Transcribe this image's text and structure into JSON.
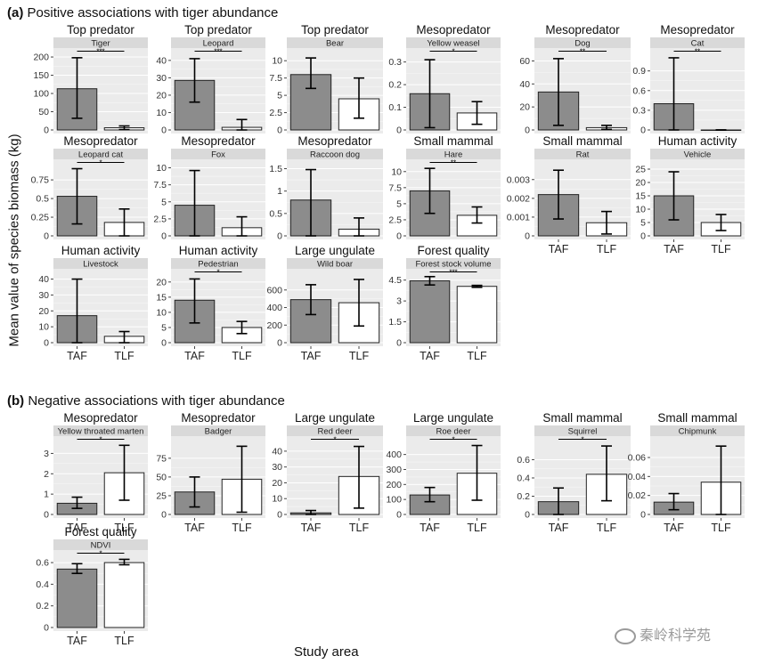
{
  "headings": {
    "a_letter": "(a)",
    "a_text": "Positive associations with tiger abundance",
    "b_letter": "(b)",
    "b_text": "Negative associations with tiger abundance"
  },
  "ylabel": "Mean value of species biomass (kg)",
  "xlabel": "Study area",
  "watermark": "秦岭科学苑",
  "chart_data": [
    {
      "type": "bar",
      "section": "a",
      "group": "Top predator",
      "title": "Tiger",
      "categories": [
        "TAF",
        "TLF"
      ],
      "values": [
        113,
        6
      ],
      "error_low": [
        32,
        1
      ],
      "error_high": [
        198,
        11
      ],
      "ylim": [
        0,
        205
      ],
      "yticks": [
        "0",
        "50",
        "100",
        "150",
        "200"
      ],
      "yvals": [
        0,
        50,
        100,
        150,
        200
      ],
      "significance": "***",
      "show_xticks": false
    },
    {
      "type": "bar",
      "section": "a",
      "group": "Top predator",
      "title": "Leopard",
      "categories": [
        "TAF",
        "TLF"
      ],
      "values": [
        28.5,
        1.5
      ],
      "error_low": [
        16,
        0
      ],
      "error_high": [
        41,
        6
      ],
      "ylim": [
        0,
        43
      ],
      "yticks": [
        "0",
        "10",
        "20",
        "30",
        "40"
      ],
      "yvals": [
        0,
        10,
        20,
        30,
        40
      ],
      "significance": "***",
      "show_xticks": false
    },
    {
      "type": "bar",
      "section": "a",
      "group": "Top predator",
      "title": "Bear",
      "categories": [
        "TAF",
        "TLF"
      ],
      "values": [
        8,
        4.5
      ],
      "error_low": [
        6,
        1.7
      ],
      "error_high": [
        10.4,
        7.5
      ],
      "ylim": [
        0,
        10.8
      ],
      "yticks": [
        "0",
        "2.5",
        "5",
        "7.5",
        "10"
      ],
      "yvals": [
        0,
        2.5,
        5,
        7.5,
        10
      ],
      "significance": "",
      "show_xticks": false
    },
    {
      "type": "bar",
      "section": "a",
      "group": "Mesopredator",
      "title": "Yellow weasel",
      "categories": [
        "TAF",
        "TLF"
      ],
      "values": [
        0.16,
        0.075
      ],
      "error_low": [
        0.01,
        0.025
      ],
      "error_high": [
        0.31,
        0.125
      ],
      "ylim": [
        0,
        0.33
      ],
      "yticks": [
        "0",
        "0.1",
        "0.2",
        "0.3"
      ],
      "yvals": [
        0,
        0.1,
        0.2,
        0.3
      ],
      "significance": "*",
      "show_xticks": false
    },
    {
      "type": "bar",
      "section": "a",
      "group": "Mesopredator",
      "title": "Dog",
      "categories": [
        "TAF",
        "TLF"
      ],
      "values": [
        33,
        2
      ],
      "error_low": [
        4,
        0.5
      ],
      "error_high": [
        62,
        4
      ],
      "ylim": [
        0,
        65
      ],
      "yticks": [
        "0",
        "20",
        "40",
        "60"
      ],
      "yvals": [
        0,
        20,
        40,
        60
      ],
      "significance": "**",
      "show_xticks": false
    },
    {
      "type": "bar",
      "section": "a",
      "group": "Mesopredator",
      "title": "Cat",
      "categories": [
        "TAF",
        "TLF"
      ],
      "values": [
        0.4,
        0
      ],
      "error_low": [
        0,
        0
      ],
      "error_high": [
        1.1,
        0
      ],
      "ylim": [
        0,
        1.14
      ],
      "yticks": [
        "0",
        "0.3",
        "0.6",
        "0.9"
      ],
      "yvals": [
        0,
        0.3,
        0.6,
        0.9
      ],
      "significance": "**",
      "show_xticks": false
    },
    {
      "type": "bar",
      "section": "a",
      "group": "Mesopredator",
      "title": "Leopard cat",
      "categories": [
        "TAF",
        "TLF"
      ],
      "values": [
        0.53,
        0.18
      ],
      "error_low": [
        0.16,
        0
      ],
      "error_high": [
        0.9,
        0.36
      ],
      "ylim": [
        0,
        0.93
      ],
      "yticks": [
        "0",
        "0.25",
        "0.5",
        "0.75"
      ],
      "yvals": [
        0,
        0.25,
        0.5,
        0.75
      ],
      "significance": "*",
      "show_xticks": false
    },
    {
      "type": "bar",
      "section": "a",
      "group": "Mesopredator",
      "title": "Fox",
      "categories": [
        "TAF",
        "TLF"
      ],
      "values": [
        4.5,
        1.2
      ],
      "error_low": [
        0,
        0
      ],
      "error_high": [
        9.6,
        2.8
      ],
      "ylim": [
        0,
        10.2
      ],
      "yticks": [
        "0",
        "2.5",
        "5",
        "7.5",
        "10"
      ],
      "yvals": [
        0,
        2.5,
        5,
        7.5,
        10
      ],
      "significance": "",
      "show_xticks": false
    },
    {
      "type": "bar",
      "section": "a",
      "group": "Mesopredator",
      "title": "Raccoon dog",
      "categories": [
        "TAF",
        "TLF"
      ],
      "values": [
        0.8,
        0.15
      ],
      "error_low": [
        0,
        0
      ],
      "error_high": [
        1.48,
        0.4
      ],
      "ylim": [
        0,
        1.55
      ],
      "yticks": [
        "0",
        "0.5",
        "1",
        "1.5"
      ],
      "yvals": [
        0,
        0.5,
        1,
        1.5
      ],
      "significance": "",
      "show_xticks": false
    },
    {
      "type": "bar",
      "section": "a",
      "group": "Small mammal",
      "title": "Hare",
      "categories": [
        "TAF",
        "TLF"
      ],
      "values": [
        7,
        3.2
      ],
      "error_low": [
        3.5,
        2
      ],
      "error_high": [
        10.5,
        4.5
      ],
      "ylim": [
        0,
        10.8
      ],
      "yticks": [
        "0",
        "2.5",
        "5",
        "7.5",
        "10"
      ],
      "yvals": [
        0,
        2.5,
        5,
        7.5,
        10
      ],
      "significance": "**",
      "show_xticks": false
    },
    {
      "type": "bar",
      "section": "a",
      "group": "Small mammal",
      "title": "Rat",
      "categories": [
        "TAF",
        "TLF"
      ],
      "values": [
        0.0022,
        0.0007
      ],
      "error_low": [
        0.0009,
        0.0001
      ],
      "error_high": [
        0.0035,
        0.0013
      ],
      "ylim": [
        0,
        0.0037
      ],
      "yticks": [
        "0",
        "0.001",
        "0.002",
        "0.003"
      ],
      "yvals": [
        0,
        0.001,
        0.002,
        0.003
      ],
      "significance": "",
      "show_xticks": true
    },
    {
      "type": "bar",
      "section": "a",
      "group": "Human activity",
      "title": "Vehicle",
      "categories": [
        "TAF",
        "TLF"
      ],
      "values": [
        15,
        5
      ],
      "error_low": [
        6,
        2
      ],
      "error_high": [
        24,
        8
      ],
      "ylim": [
        0,
        26
      ],
      "yticks": [
        "0",
        "5",
        "10",
        "15",
        "20",
        "25"
      ],
      "yvals": [
        0,
        5,
        10,
        15,
        20,
        25
      ],
      "significance": "",
      "show_xticks": true
    },
    {
      "type": "bar",
      "section": "a",
      "group": "Human activity",
      "title": "Livestock",
      "categories": [
        "TAF",
        "TLF"
      ],
      "values": [
        17,
        4
      ],
      "error_low": [
        0,
        0
      ],
      "error_high": [
        40,
        7
      ],
      "ylim": [
        0,
        42
      ],
      "yticks": [
        "0",
        "10",
        "20",
        "30",
        "40"
      ],
      "yvals": [
        0,
        10,
        20,
        30,
        40
      ],
      "significance": "",
      "show_xticks": true
    },
    {
      "type": "bar",
      "section": "a",
      "group": "Human activity",
      "title": "Pedestrian",
      "categories": [
        "TAF",
        "TLF"
      ],
      "values": [
        14,
        5
      ],
      "error_low": [
        6.5,
        3
      ],
      "error_high": [
        21,
        7
      ],
      "ylim": [
        0,
        22
      ],
      "yticks": [
        "0",
        "5",
        "10",
        "15",
        "20"
      ],
      "yvals": [
        0,
        5,
        10,
        15,
        20
      ],
      "significance": "*",
      "show_xticks": true
    },
    {
      "type": "bar",
      "section": "a",
      "group": "Large ungulate",
      "title": "Wild boar",
      "categories": [
        "TAF",
        "TLF"
      ],
      "values": [
        490,
        455
      ],
      "error_low": [
        320,
        190
      ],
      "error_high": [
        660,
        720
      ],
      "ylim": [
        0,
        760
      ],
      "yticks": [
        "0",
        "200",
        "400",
        "600"
      ],
      "yvals": [
        0,
        200,
        400,
        600
      ],
      "significance": "",
      "show_xticks": true
    },
    {
      "type": "bar",
      "section": "a",
      "group": "Forest quality",
      "title": "Forest stock volume",
      "categories": [
        "TAF",
        "TLF"
      ],
      "values": [
        4.45,
        4.05
      ],
      "error_low": [
        4.15,
        3.98
      ],
      "error_high": [
        4.75,
        4.12
      ],
      "ylim": [
        0,
        4.8
      ],
      "yticks": [
        "0",
        "1.5",
        "3",
        "4.5"
      ],
      "yvals": [
        0,
        1.5,
        3,
        4.5
      ],
      "significance": "***",
      "show_xticks": true
    },
    {
      "type": "bar",
      "section": "b",
      "group": "Mesopredator",
      "title": "Yellow throated marten",
      "categories": [
        "TAF",
        "TLF"
      ],
      "values": [
        0.55,
        2.05
      ],
      "error_low": [
        0.3,
        0.7
      ],
      "error_high": [
        0.85,
        3.4
      ],
      "ylim": [
        0,
        3.5
      ],
      "yticks": [
        "0",
        "1",
        "2",
        "3"
      ],
      "yvals": [
        0,
        1,
        2,
        3
      ],
      "significance": "*",
      "show_xticks": true
    },
    {
      "type": "bar",
      "section": "b",
      "group": "Mesopredator",
      "title": "Badger",
      "categories": [
        "TAF",
        "TLF"
      ],
      "values": [
        30,
        47
      ],
      "error_low": [
        10,
        3
      ],
      "error_high": [
        50,
        91
      ],
      "ylim": [
        0,
        95
      ],
      "yticks": [
        "0",
        "25",
        "50",
        "75"
      ],
      "yvals": [
        0,
        25,
        50,
        75
      ],
      "significance": "",
      "show_xticks": true
    },
    {
      "type": "bar",
      "section": "b",
      "group": "Large ungulate",
      "title": "Red deer",
      "categories": [
        "TAF",
        "TLF"
      ],
      "values": [
        1,
        24
      ],
      "error_low": [
        0,
        4
      ],
      "error_high": [
        2.5,
        43
      ],
      "ylim": [
        0,
        45
      ],
      "yticks": [
        "0",
        "10",
        "20",
        "30",
        "40"
      ],
      "yvals": [
        0,
        10,
        20,
        30,
        40
      ],
      "significance": "*",
      "show_xticks": true
    },
    {
      "type": "bar",
      "section": "b",
      "group": "Large ungulate",
      "title": "Roe deer",
      "categories": [
        "TAF",
        "TLF"
      ],
      "values": [
        130,
        275
      ],
      "error_low": [
        85,
        95
      ],
      "error_high": [
        180,
        460
      ],
      "ylim": [
        0,
        475
      ],
      "yticks": [
        "0",
        "100",
        "200",
        "300",
        "400"
      ],
      "yvals": [
        0,
        100,
        200,
        300,
        400
      ],
      "significance": "*",
      "show_xticks": true
    },
    {
      "type": "bar",
      "section": "b",
      "group": "Small mammal",
      "title": "Squirrel",
      "categories": [
        "TAF",
        "TLF"
      ],
      "values": [
        0.14,
        0.44
      ],
      "error_low": [
        0,
        0.15
      ],
      "error_high": [
        0.29,
        0.75
      ],
      "ylim": [
        0,
        0.78
      ],
      "yticks": [
        "0",
        "0.2",
        "0.4",
        "0.6"
      ],
      "yvals": [
        0,
        0.2,
        0.4,
        0.6
      ],
      "significance": "*",
      "show_xticks": true
    },
    {
      "type": "bar",
      "section": "b",
      "group": "Small mammal",
      "title": "Chipmunk",
      "categories": [
        "TAF",
        "TLF"
      ],
      "values": [
        0.013,
        0.034
      ],
      "error_low": [
        0.005,
        0
      ],
      "error_high": [
        0.022,
        0.072
      ],
      "ylim": [
        0,
        0.075
      ],
      "yticks": [
        "0",
        "0.02",
        "0.04",
        "0.06"
      ],
      "yvals": [
        0,
        0.02,
        0.04,
        0.06
      ],
      "significance": "",
      "show_xticks": true
    },
    {
      "type": "bar",
      "section": "b",
      "group": "Forest quality",
      "title": "NDVI",
      "categories": [
        "TAF",
        "TLF"
      ],
      "values": [
        0.54,
        0.6
      ],
      "error_low": [
        0.5,
        0.58
      ],
      "error_high": [
        0.59,
        0.63
      ],
      "ylim": [
        0,
        0.65
      ],
      "yticks": [
        "0",
        "0.2",
        "0.4",
        "0.6"
      ],
      "yvals": [
        0,
        0.2,
        0.4,
        0.6
      ],
      "significance": "*",
      "show_xticks": true
    }
  ]
}
